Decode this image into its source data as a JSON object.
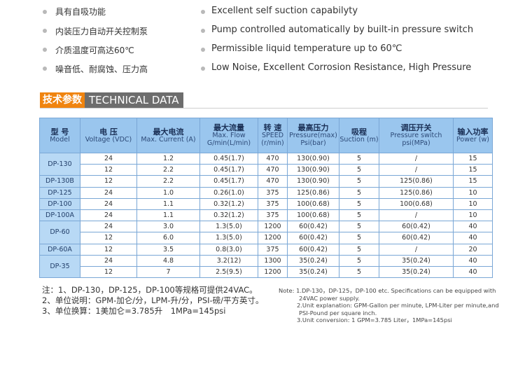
{
  "features_cn": [
    "具有自吸功能",
    "内装压力自动开关控制泵",
    "介质温度可高达60℃",
    "噪音低、耐腐蚀、压力高"
  ],
  "features_en": [
    "Excellent self suction capabilyty",
    "Pump controlled automatically by built-in pressure switch",
    "Permissible liquid temperature up to 60℃",
    "Low Noise, Excellent Corrosion Resistance, High Pressure"
  ],
  "section": {
    "title_cn": "技术参数",
    "title_en": "TECHNICAL DATA"
  },
  "table": {
    "headers": [
      {
        "cn": "型 号",
        "en": "Model"
      },
      {
        "cn": "电 压",
        "en": "Voltage (VDC)"
      },
      {
        "cn": "最大电流",
        "en": "Max. Current (A)"
      },
      {
        "cn": "最大流量",
        "en": "Max. Flow G/min(L/min)"
      },
      {
        "cn": "转 速",
        "en": "SPEED (r/min)"
      },
      {
        "cn": "最高压力",
        "en": "Pressure(max) Psi(bar)"
      },
      {
        "cn": "吸程",
        "en": "Suction (m)"
      },
      {
        "cn": "调压开关",
        "en": "Pressure switch psi(MPa)"
      },
      {
        "cn": "输入功率",
        "en": "Power (w)"
      }
    ],
    "groups": [
      {
        "model": "DP-130",
        "rows": [
          [
            "24",
            "1.2",
            "0.45(1.7)",
            "470",
            "130(0.90)",
            "5",
            "/",
            "15"
          ],
          [
            "12",
            "2.2",
            "0.45(1.7)",
            "470",
            "130(0.90)",
            "5",
            "/",
            "15"
          ]
        ]
      },
      {
        "model": "DP-130B",
        "rows": [
          [
            "12",
            "2.2",
            "0.45(1.7)",
            "470",
            "130(0.90)",
            "5",
            "125(0.86)",
            "15"
          ]
        ]
      },
      {
        "model": "DP-125",
        "rows": [
          [
            "24",
            "1.0",
            "0.26(1.0)",
            "375",
            "125(0.86)",
            "5",
            "125(0.86)",
            "10"
          ]
        ]
      },
      {
        "model": "DP-100",
        "rows": [
          [
            "24",
            "1.1",
            "0.32(1.2)",
            "375",
            "100(0.68)",
            "5",
            "100(0.68)",
            "10"
          ]
        ]
      },
      {
        "model": "DP-100A",
        "rows": [
          [
            "24",
            "1.1",
            "0.32(1.2)",
            "375",
            "100(0.68)",
            "5",
            "/",
            "10"
          ]
        ]
      },
      {
        "model": "DP-60",
        "rows": [
          [
            "24",
            "3.0",
            "1.3(5.0)",
            "1200",
            "60(0.42)",
            "5",
            "60(0.42)",
            "40"
          ],
          [
            "12",
            "6.0",
            "1.3(5.0)",
            "1200",
            "60(0.42)",
            "5",
            "60(0.42)",
            "40"
          ]
        ]
      },
      {
        "model": "DP-60A",
        "rows": [
          [
            "12",
            "3.5",
            "0.8(3.0)",
            "375",
            "60(0.42)",
            "5",
            "/",
            "20"
          ]
        ]
      },
      {
        "model": "DP-35",
        "rows": [
          [
            "24",
            "4.8",
            "3.2(12)",
            "1300",
            "35(0.24)",
            "5",
            "35(0.24)",
            "40"
          ],
          [
            "12",
            "7",
            "2.5(9.5)",
            "1200",
            "35(0.24)",
            "5",
            "35(0.24)",
            "40"
          ]
        ]
      }
    ]
  },
  "notes_cn": [
    "注：1、DP-130，DP-125，DP-100等规格可提供24VAC。",
    "2、单位说明：GPM-加仑/分，LPM-升/分，PSI-磅/平方英寸。",
    "3、单位换算：1美加仑=3.785升　1MPa=145psi"
  ],
  "notes_en": [
    "Note:  1.DP-130，DP-125，DP-100 etc. Specifications can be equipped with",
    "24VAC power supply.",
    "2.Unit explanation: GPM-Gallon per minute, LPM-Liter per minute,and",
    "PSI-Pound per square inch.",
    "3.Unit conversion: 1 GPM=3.785 Liter，1MPa=145psi"
  ],
  "colors": {
    "accent": "#f0840f",
    "title_grey": "#6d6d6d",
    "header_blue": "#9ac6ee",
    "model_blue": "#b8d9f5",
    "border": "#7aa7d6"
  }
}
